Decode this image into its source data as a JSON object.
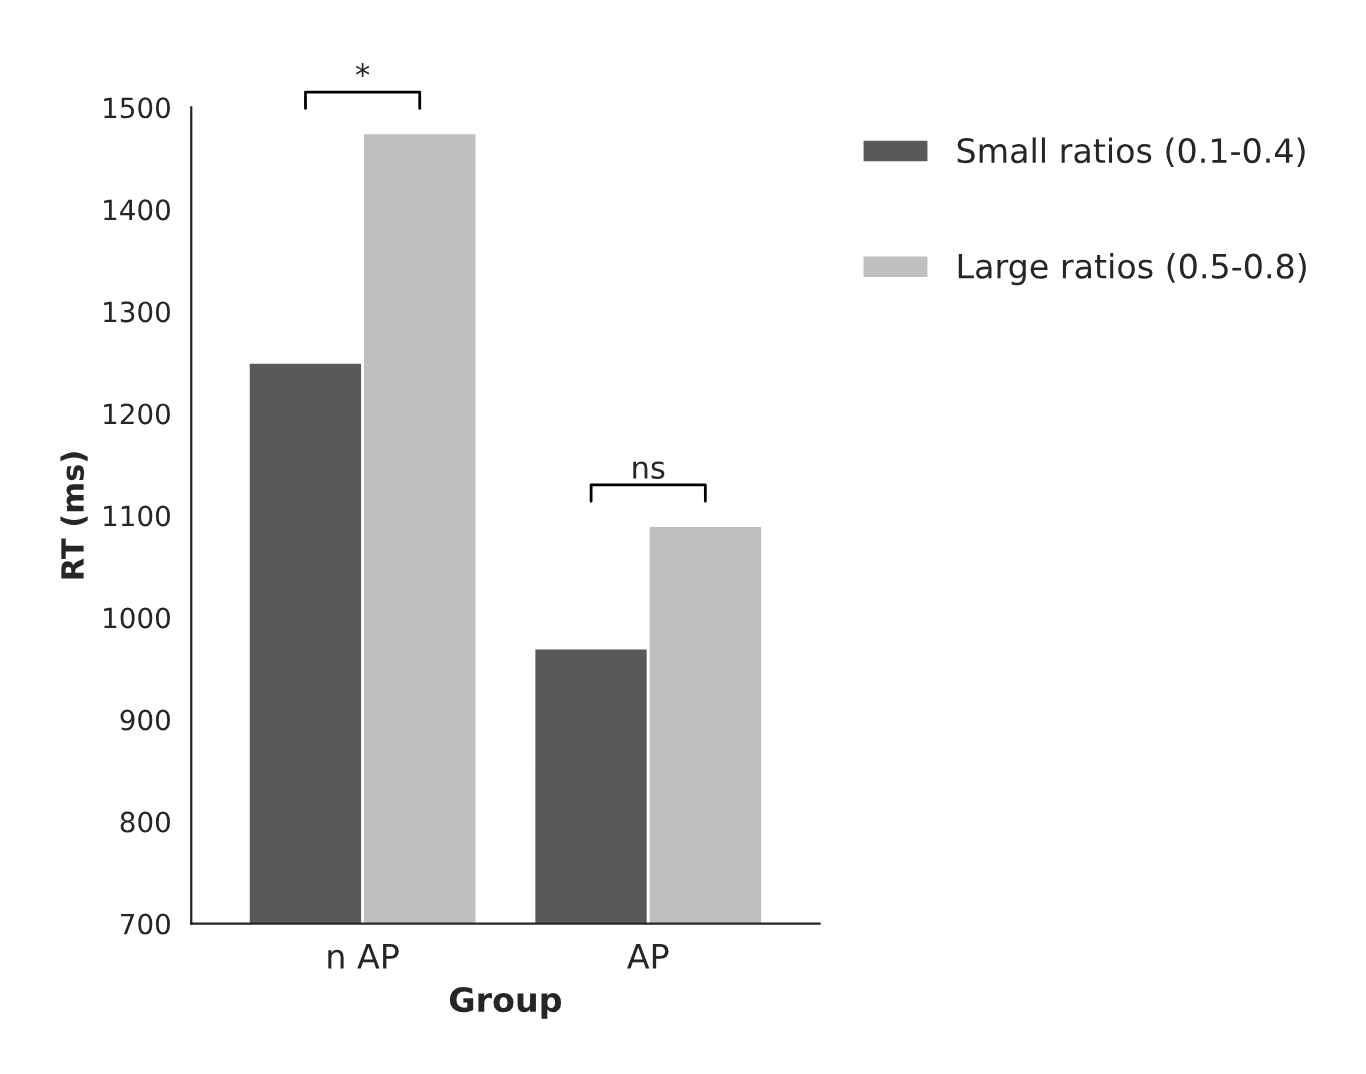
{
  "chart_data": {
    "type": "bar",
    "xlabel": "Group",
    "ylabel": "RT (ms)",
    "categories": [
      "n AP",
      "AP"
    ],
    "series": [
      {
        "name": "Small ratios (0.1-0.4)",
        "color": "#595959",
        "values": [
          1250,
          970
        ]
      },
      {
        "name": "Large ratios (0.5-0.8)",
        "color": "#bfbfbf",
        "values": [
          1475,
          1090
        ]
      }
    ],
    "ylim": [
      700,
      1500
    ],
    "yticks": [
      700,
      800,
      900,
      1000,
      1100,
      1200,
      1300,
      1400,
      1500
    ],
    "grid": false,
    "legend": "top right",
    "annotations": [
      "*",
      "ns"
    ]
  }
}
